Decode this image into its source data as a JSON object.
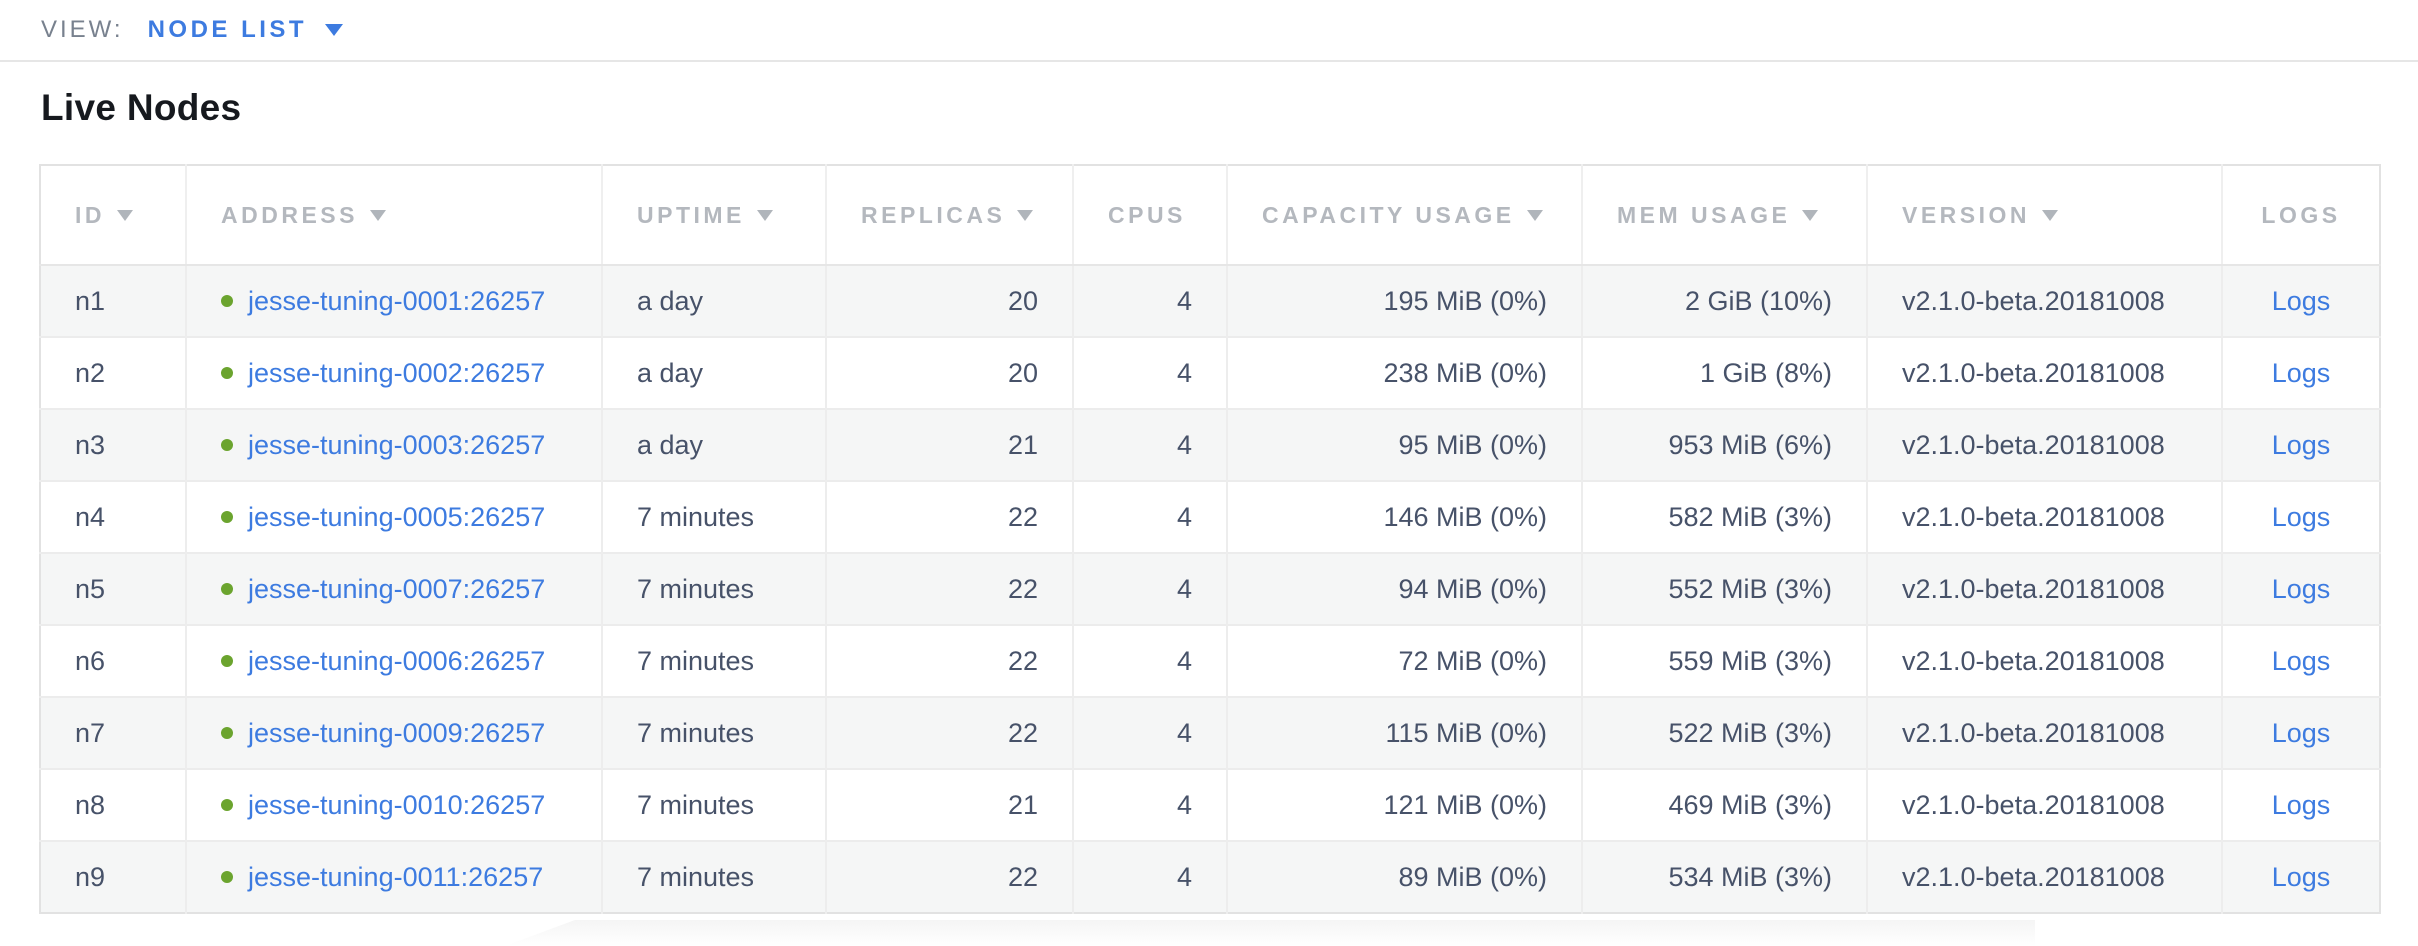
{
  "view_bar": {
    "label": "VIEW:",
    "selected_view": "NODE LIST"
  },
  "page": {
    "title": "Live Nodes"
  },
  "table": {
    "columns": [
      {
        "key": "id",
        "label": "ID",
        "sortable": true,
        "align": "left"
      },
      {
        "key": "address",
        "label": "ADDRESS",
        "sortable": true,
        "align": "left"
      },
      {
        "key": "uptime",
        "label": "UPTIME",
        "sortable": true,
        "align": "left"
      },
      {
        "key": "replicas",
        "label": "REPLICAS",
        "sortable": true,
        "align": "right"
      },
      {
        "key": "cpus",
        "label": "CPUS",
        "sortable": false,
        "align": "right"
      },
      {
        "key": "capacity",
        "label": "CAPACITY USAGE",
        "sortable": true,
        "align": "right"
      },
      {
        "key": "mem",
        "label": "MEM USAGE",
        "sortable": true,
        "align": "right"
      },
      {
        "key": "version",
        "label": "VERSION",
        "sortable": true,
        "align": "left"
      },
      {
        "key": "logs",
        "label": "LOGS",
        "sortable": false,
        "align": "center"
      }
    ],
    "rows": [
      {
        "id": "n1",
        "status": "live",
        "address": "jesse-tuning-0001:26257",
        "uptime": "a day",
        "replicas": "20",
        "cpus": "4",
        "capacity": "195 MiB (0%)",
        "mem": "2 GiB (10%)",
        "version": "v2.1.0-beta.20181008",
        "logs": "Logs"
      },
      {
        "id": "n2",
        "status": "live",
        "address": "jesse-tuning-0002:26257",
        "uptime": "a day",
        "replicas": "20",
        "cpus": "4",
        "capacity": "238 MiB (0%)",
        "mem": "1 GiB (8%)",
        "version": "v2.1.0-beta.20181008",
        "logs": "Logs"
      },
      {
        "id": "n3",
        "status": "live",
        "address": "jesse-tuning-0003:26257",
        "uptime": "a day",
        "replicas": "21",
        "cpus": "4",
        "capacity": "95 MiB (0%)",
        "mem": "953 MiB (6%)",
        "version": "v2.1.0-beta.20181008",
        "logs": "Logs"
      },
      {
        "id": "n4",
        "status": "live",
        "address": "jesse-tuning-0005:26257",
        "uptime": "7 minutes",
        "replicas": "22",
        "cpus": "4",
        "capacity": "146 MiB (0%)",
        "mem": "582 MiB (3%)",
        "version": "v2.1.0-beta.20181008",
        "logs": "Logs"
      },
      {
        "id": "n5",
        "status": "live",
        "address": "jesse-tuning-0007:26257",
        "uptime": "7 minutes",
        "replicas": "22",
        "cpus": "4",
        "capacity": "94 MiB (0%)",
        "mem": "552 MiB (3%)",
        "version": "v2.1.0-beta.20181008",
        "logs": "Logs"
      },
      {
        "id": "n6",
        "status": "live",
        "address": "jesse-tuning-0006:26257",
        "uptime": "7 minutes",
        "replicas": "22",
        "cpus": "4",
        "capacity": "72 MiB (0%)",
        "mem": "559 MiB (3%)",
        "version": "v2.1.0-beta.20181008",
        "logs": "Logs"
      },
      {
        "id": "n7",
        "status": "live",
        "address": "jesse-tuning-0009:26257",
        "uptime": "7 minutes",
        "replicas": "22",
        "cpus": "4",
        "capacity": "115 MiB (0%)",
        "mem": "522 MiB (3%)",
        "version": "v2.1.0-beta.20181008",
        "logs": "Logs"
      },
      {
        "id": "n8",
        "status": "live",
        "address": "jesse-tuning-0010:26257",
        "uptime": "7 minutes",
        "replicas": "21",
        "cpus": "4",
        "capacity": "121 MiB (0%)",
        "mem": "469 MiB (3%)",
        "version": "v2.1.0-beta.20181008",
        "logs": "Logs"
      },
      {
        "id": "n9",
        "status": "live",
        "address": "jesse-tuning-0011:26257",
        "uptime": "7 minutes",
        "replicas": "22",
        "cpus": "4",
        "capacity": "89 MiB (0%)",
        "mem": "534 MiB (3%)",
        "version": "v2.1.0-beta.20181008",
        "logs": "Logs"
      }
    ]
  },
  "colors": {
    "link_blue": "#3d7be0",
    "node_live_green": "#6ba42e",
    "header_text_gray": "#b4b8be",
    "body_text_slate": "#475269",
    "row_alt_background": "#f5f6f6",
    "border_gray": "#e6e6e6",
    "view_label_gray": "#78818e"
  }
}
